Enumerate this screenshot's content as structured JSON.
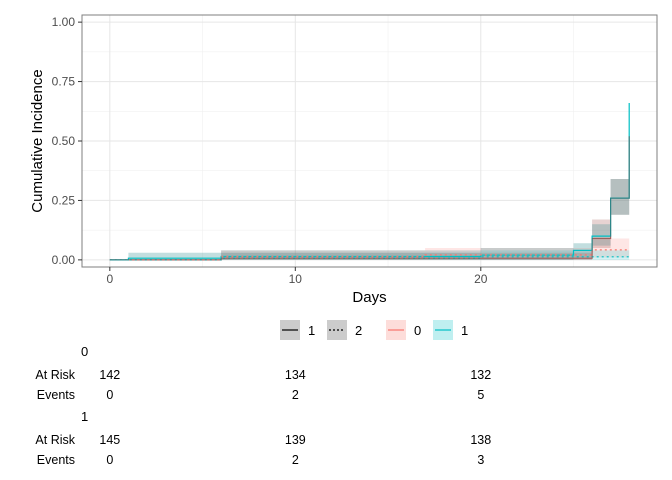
{
  "chart_data": {
    "type": "line",
    "xlabel": "Days",
    "ylabel": "Cumulative Incidence",
    "xlim": [
      -1.5,
      29.5
    ],
    "ylim": [
      -0.03,
      1.03
    ],
    "x_ticks": [
      0,
      10,
      20
    ],
    "y_ticks": [
      0.0,
      0.25,
      0.5,
      0.75,
      1.0
    ],
    "y_tick_labels": [
      "0.00",
      "0.25",
      "0.50",
      "0.75",
      "1.00"
    ],
    "grid": true,
    "legend": {
      "position": "bottom",
      "linetype_entries": [
        {
          "label": "1",
          "style": "solid"
        },
        {
          "label": "2",
          "style": "dotted"
        }
      ],
      "color_entries": [
        {
          "label": "0",
          "color": "#F8766D"
        },
        {
          "label": "1",
          "color": "#00BFC4"
        }
      ]
    },
    "series": [
      {
        "group": "0",
        "linetype": "1",
        "color": "#F8766D",
        "x": [
          0,
          6,
          26,
          27,
          28,
          28
        ],
        "y": [
          0,
          0.007,
          0.09,
          0.26,
          0.26,
          0.52
        ],
        "lower": [
          0,
          0,
          0.05,
          0.19,
          0.19,
          0.45
        ],
        "upper": [
          0,
          0.03,
          0.17,
          0.34,
          0.34,
          0.6
        ]
      },
      {
        "group": "1",
        "linetype": "1",
        "color": "#00BFC4",
        "x": [
          0,
          1,
          6,
          20,
          25,
          26,
          27,
          28,
          28
        ],
        "y": [
          0,
          0.007,
          0.014,
          0.02,
          0.04,
          0.1,
          0.26,
          0.26,
          0.66
        ],
        "lower": [
          0,
          0,
          0,
          0,
          0.01,
          0.06,
          0.19,
          0.19,
          0.58
        ],
        "upper": [
          0,
          0.03,
          0.04,
          0.05,
          0.07,
          0.15,
          0.34,
          0.34,
          0.74
        ]
      },
      {
        "group": "0",
        "linetype": "2",
        "color": "#F8766D",
        "x": [
          0,
          6,
          17,
          26,
          28
        ],
        "y": [
          0,
          0.014,
          0.021,
          0.042,
          0.042
        ],
        "lower": [
          0,
          0,
          0,
          0.01,
          0.01
        ],
        "upper": [
          0,
          0.04,
          0.05,
          0.09,
          0.09
        ]
      },
      {
        "group": "1",
        "linetype": "2",
        "color": "#00BFC4",
        "x": [
          0,
          6,
          20,
          28
        ],
        "y": [
          0,
          0.007,
          0.013,
          0.013
        ],
        "lower": [
          0,
          0,
          0,
          0
        ],
        "upper": [
          0,
          0.03,
          0.04,
          0.04
        ]
      }
    ],
    "risk_table": {
      "times": [
        0,
        10,
        20
      ],
      "row_labels": [
        "At Risk",
        "Events"
      ],
      "strata": [
        {
          "name": "0",
          "at_risk": [
            "142",
            "134",
            "132"
          ],
          "events": [
            "0",
            "2",
            "5"
          ]
        },
        {
          "name": "1",
          "at_risk": [
            "145",
            "139",
            "138"
          ],
          "events": [
            "0",
            "2",
            "3"
          ]
        }
      ]
    }
  }
}
